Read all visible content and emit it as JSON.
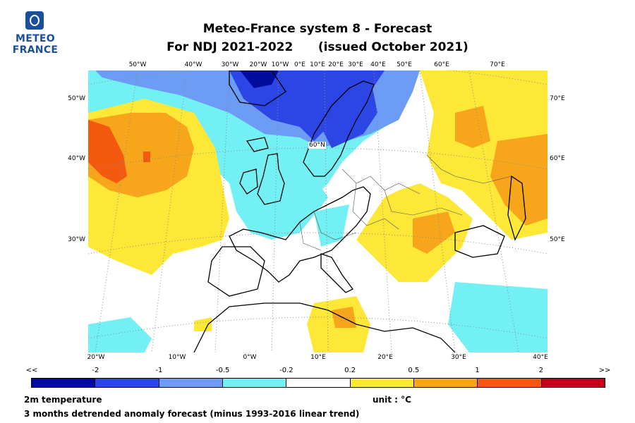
{
  "logo": {
    "line1": "METEO",
    "line2": "FRANCE",
    "color": "#1a4f9c"
  },
  "title": {
    "line1": "Meteo-France system 8  -  Forecast",
    "line2": "For NDJ 2021-2022      (issued October 2021)"
  },
  "map": {
    "top_ticks": [
      "50°W",
      "40°W",
      "30°W",
      "20°W",
      "10°W",
      "0°E",
      "10°E",
      "20°E",
      "30°E",
      "40°E",
      "50°E",
      "60°E",
      "70°E"
    ],
    "bottom_ticks": [
      "20°W",
      "10°W",
      "0°W",
      "10°E",
      "20°E",
      "30°E",
      "40°E"
    ],
    "left_ticks": [
      "50°W",
      "40°W",
      "30°W"
    ],
    "right_ticks": [
      "70°E",
      "60°E",
      "50°E"
    ],
    "lat_label": "60°N",
    "background_color": "#ffffff",
    "coast_color": "#000000"
  },
  "colorbar": {
    "labels": [
      "<<",
      "-2",
      "-1",
      "-0.5",
      "-0.2",
      "0.2",
      "0.5",
      "1",
      "2",
      ">>"
    ],
    "colors": [
      "#000c9c",
      "#2c46e6",
      "#6d9cf5",
      "#72f0f4",
      "#ffffff",
      "#fde838",
      "#f7a51a",
      "#f35a10",
      "#c0001a"
    ]
  },
  "footer": {
    "variable": "2m temperature",
    "unit": "unit : °C",
    "description": "3 months detrended anomaly forecast (minus 1993-2016 linear trend)"
  }
}
